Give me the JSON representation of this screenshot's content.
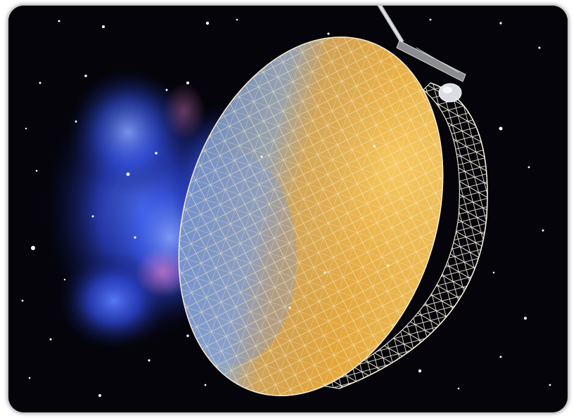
{
  "scene": {
    "subject": "space-radio-telescope-dish",
    "background": "starfield-with-blue-nebula",
    "colors": {
      "space": "#04040a",
      "nebula_core": "#3b5ae0",
      "nebula_glow": "#1d2a9a",
      "nebula_pink": "#c86aa8",
      "dish_gold": "#e8a93a",
      "dish_gold_light": "#f7c95a",
      "dish_shadow_blue": "#6f8fc8",
      "truss": "#e9e4d6",
      "star": "#ffffff"
    }
  }
}
